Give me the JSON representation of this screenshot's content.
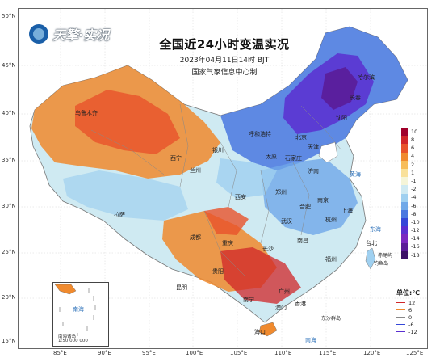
{
  "title": "全国近24小时变温实况",
  "timestamp": "2023年04月11日14时 BJT",
  "issuer": "国家气象信息中心制",
  "logo_text": "天擎·实况",
  "latitudes": [
    "50°N",
    "45°N",
    "40°N",
    "35°N",
    "30°N",
    "25°N",
    "20°N",
    "15°N"
  ],
  "longitudes": [
    "85°E",
    "90°E",
    "95°E",
    "100°E",
    "105°E",
    "110°E",
    "115°E",
    "120°E",
    "125°E"
  ],
  "legend": {
    "unit": "单位:℃",
    "bins": [
      {
        "label": "10",
        "color": "#a0002a"
      },
      {
        "label": "8",
        "color": "#d02528"
      },
      {
        "label": "6",
        "color": "#e8532a"
      },
      {
        "label": "4",
        "color": "#f08a2e"
      },
      {
        "label": "2",
        "color": "#f7bd5a"
      },
      {
        "label": "1",
        "color": "#f9e19a"
      },
      {
        "label": "-1",
        "color": "#f5f5d8"
      },
      {
        "label": "-2",
        "color": "#cfeaf2"
      },
      {
        "label": "-4",
        "color": "#9fd0f0"
      },
      {
        "label": "-6",
        "color": "#6fa8e8"
      },
      {
        "label": "-8",
        "color": "#4a78e0"
      },
      {
        "label": "-10",
        "color": "#3447d8"
      },
      {
        "label": "-12",
        "color": "#5a2fd0"
      },
      {
        "label": "-14",
        "color": "#7a28c0"
      },
      {
        "label": "-16",
        "color": "#5a1c98"
      },
      {
        "label": "-18",
        "color": "#3c1068"
      }
    ],
    "lines": [
      {
        "label": "12",
        "color": "#d02528"
      },
      {
        "label": "6",
        "color": "#f08a2e"
      },
      {
        "label": "0",
        "color": "#888888"
      },
      {
        "label": "-6",
        "color": "#3447d8"
      },
      {
        "label": "-12",
        "color": "#5a2fd0"
      }
    ]
  },
  "places": [
    "乌鲁木齐",
    "拉萨",
    "西宁",
    "兰州",
    "银川",
    "呼和浩特",
    "太原",
    "石家庄",
    "北京",
    "天津",
    "济南",
    "郑州",
    "西安",
    "成都",
    "重庆",
    "贵阳",
    "昆明",
    "武汉",
    "长沙",
    "南昌",
    "杭州",
    "上海",
    "南京",
    "合肥",
    "福州",
    "台北",
    "广州",
    "南宁",
    "海口",
    "香港",
    "澳门",
    "沈阳",
    "长春",
    "哈尔滨"
  ],
  "seas": [
    "黄海",
    "东海",
    "南海"
  ],
  "inset": {
    "labels": [
      "南海",
      "南海诸岛",
      "1:50 000 000"
    ]
  },
  "extra_labels": [
    "钓鱼岛",
    "赤尾屿",
    "东沙群岛"
  ]
}
